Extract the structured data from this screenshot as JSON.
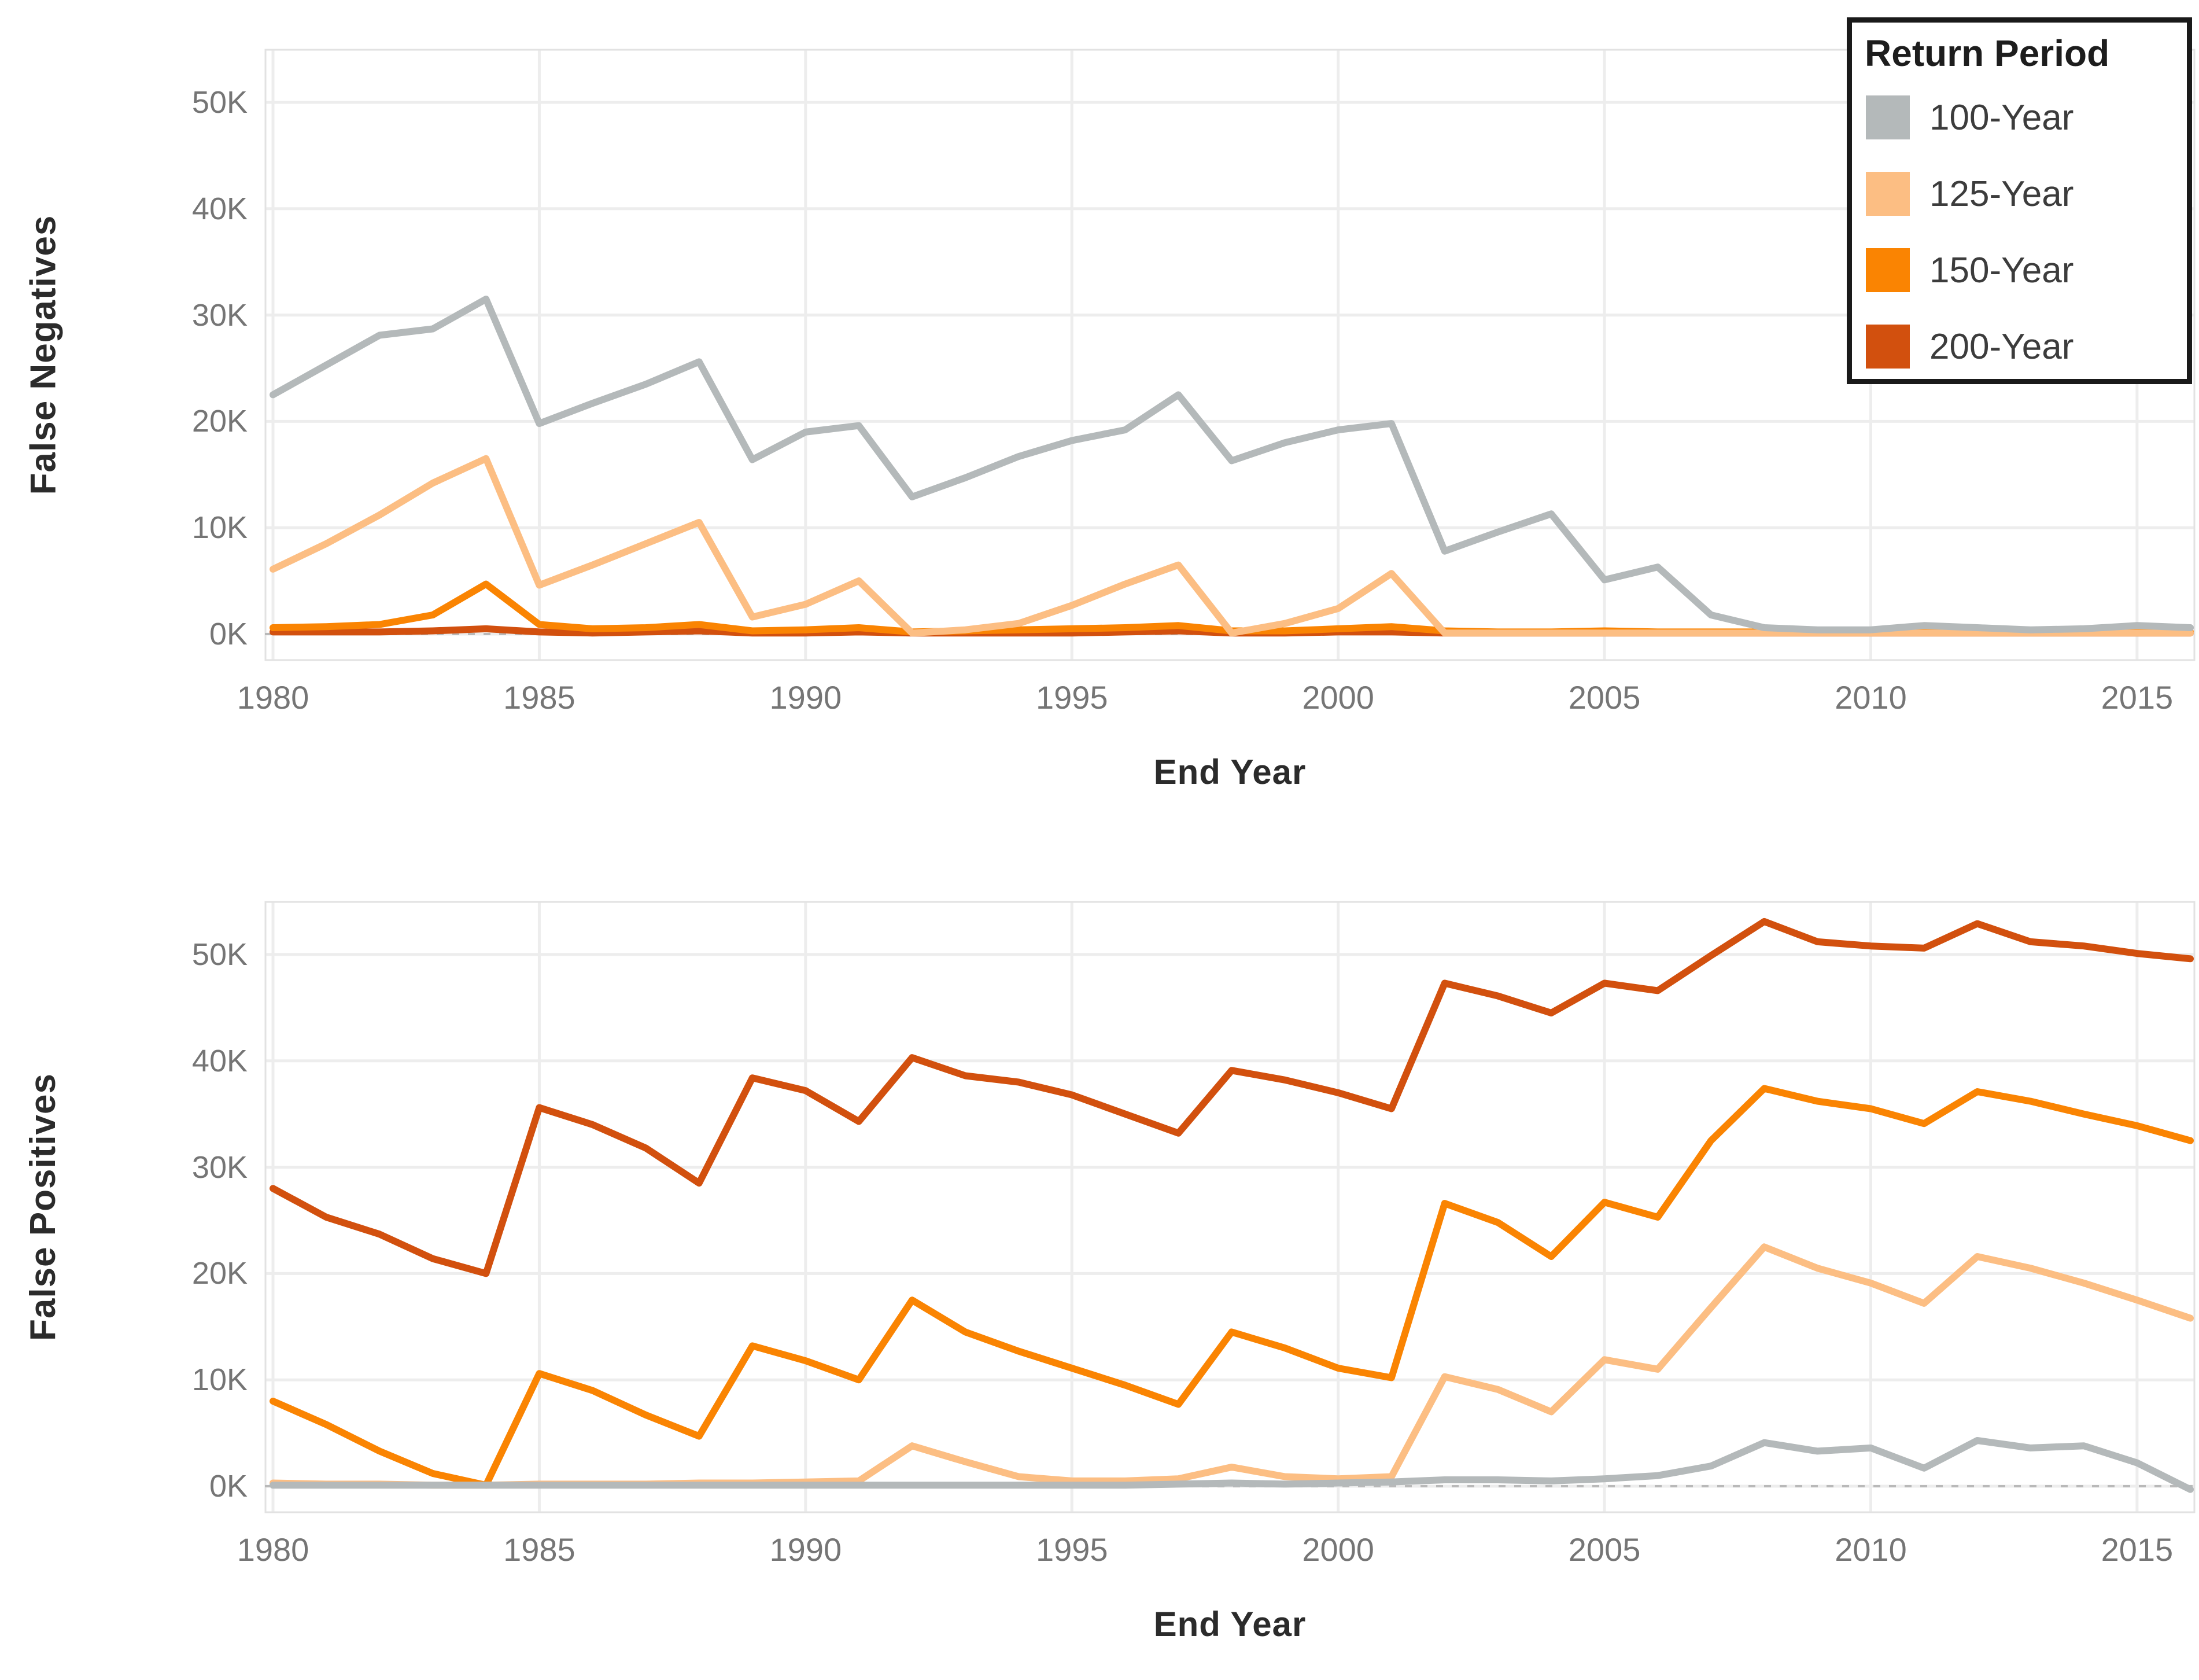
{
  "legend": {
    "title": "Return Period",
    "items": [
      {
        "label": "100-Year",
        "color": "#b4b9ba"
      },
      {
        "label": "125-Year",
        "color": "#fcbe83"
      },
      {
        "label": "150-Year",
        "color": "#fa8402"
      },
      {
        "label": "200-Year",
        "color": "#d2500e"
      }
    ]
  },
  "style": {
    "background": "#ffffff",
    "grid_color": "#ededed",
    "plot_border_color": "#e2e2e2",
    "tick_text_color": "#757575",
    "axis_title_color": "#2b2b2b",
    "zero_line_color": "#b9b9b9"
  },
  "chart_data": [
    {
      "type": "line",
      "title": "",
      "ylabel": "False Negatives",
      "xlabel": "End Year",
      "unit": "thousands",
      "grid": true,
      "legend_position": "top-right",
      "ylim": [
        -2.5,
        55
      ],
      "yticks": [
        {
          "value": 0,
          "label": "0K"
        },
        {
          "value": 10,
          "label": "10K"
        },
        {
          "value": 20,
          "label": "20K"
        },
        {
          "value": 30,
          "label": "30K"
        },
        {
          "value": 40,
          "label": "40K"
        },
        {
          "value": 50,
          "label": "50K"
        }
      ],
      "xticks": [
        {
          "value": 1980,
          "label": "1980"
        },
        {
          "value": 1985,
          "label": "1985"
        },
        {
          "value": 1990,
          "label": "1990"
        },
        {
          "value": 1995,
          "label": "1995"
        },
        {
          "value": 2000,
          "label": "2000"
        },
        {
          "value": 2005,
          "label": "2005"
        },
        {
          "value": 2010,
          "label": "2010"
        },
        {
          "value": 2015,
          "label": "2015"
        }
      ],
      "zero_reference_line": true,
      "x": [
        1980,
        1981,
        1982,
        1983,
        1984,
        1985,
        1986,
        1987,
        1988,
        1989,
        1990,
        1991,
        1992,
        1993,
        1994,
        1995,
        1996,
        1997,
        1998,
        1999,
        2000,
        2001,
        2002,
        2003,
        2004,
        2005,
        2006,
        2007,
        2008,
        2009,
        2010,
        2011,
        2012,
        2013,
        2014,
        2015,
        2016
      ],
      "series": [
        {
          "name": "100-Year",
          "color": "#b4b9ba",
          "values": [
            22.5,
            25.3,
            28.1,
            28.7,
            31.5,
            19.8,
            21.7,
            23.5,
            25.6,
            16.4,
            19.0,
            19.6,
            12.9,
            14.7,
            16.7,
            18.2,
            19.2,
            22.5,
            16.3,
            18.0,
            19.2,
            19.8,
            7.8,
            9.6,
            11.3,
            5.1,
            6.3,
            1.8,
            0.6,
            0.4,
            0.4,
            0.8,
            0.6,
            0.4,
            0.5,
            0.8,
            0.6
          ]
        },
        {
          "name": "125-Year",
          "color": "#fcbe83",
          "values": [
            6.1,
            8.5,
            11.2,
            14.2,
            16.5,
            4.6,
            6.5,
            8.5,
            10.5,
            1.6,
            2.8,
            5.0,
            0.1,
            0.4,
            1.0,
            2.7,
            4.7,
            6.5,
            0.1,
            1.0,
            2.4,
            5.7,
            0.1,
            0.1,
            0.1,
            0.1,
            0.1,
            0.1,
            0.1,
            0.1,
            0.1,
            0.1,
            0.1,
            0.1,
            0.1,
            0.1,
            0.1
          ]
        },
        {
          "name": "150-Year",
          "color": "#fa8402",
          "values": [
            0.6,
            0.7,
            0.9,
            1.8,
            4.7,
            0.9,
            0.5,
            0.6,
            0.9,
            0.3,
            0.4,
            0.6,
            0.2,
            0.3,
            0.4,
            0.5,
            0.6,
            0.8,
            0.3,
            0.3,
            0.5,
            0.7,
            0.3,
            0.2,
            0.2,
            0.3,
            0.2,
            0.2,
            0.2,
            0.2,
            0.2,
            0.2,
            0.2,
            0.2,
            0.2,
            0.2,
            0.2
          ]
        },
        {
          "name": "200-Year",
          "color": "#d2500e",
          "values": [
            0.2,
            0.2,
            0.2,
            0.3,
            0.5,
            0.2,
            0.1,
            0.2,
            0.3,
            0.1,
            0.1,
            0.2,
            0.1,
            0.1,
            0.1,
            0.1,
            0.2,
            0.3,
            0.1,
            0.1,
            0.2,
            0.2,
            0.1,
            0.1,
            0.1,
            0.1,
            0.1,
            0.1,
            0.1,
            0.1,
            0.1,
            0.1,
            0.1,
            0.1,
            0.1,
            0.1,
            0.1
          ]
        }
      ]
    },
    {
      "type": "line",
      "title": "",
      "ylabel": "False Positives",
      "xlabel": "End Year",
      "unit": "thousands",
      "grid": true,
      "ylim": [
        -2.5,
        55
      ],
      "yticks": [
        {
          "value": 0,
          "label": "0K"
        },
        {
          "value": 10,
          "label": "10K"
        },
        {
          "value": 20,
          "label": "20K"
        },
        {
          "value": 30,
          "label": "30K"
        },
        {
          "value": 40,
          "label": "40K"
        },
        {
          "value": 50,
          "label": "50K"
        }
      ],
      "xticks": [
        {
          "value": 1980,
          "label": "1980"
        },
        {
          "value": 1985,
          "label": "1985"
        },
        {
          "value": 1990,
          "label": "1990"
        },
        {
          "value": 1995,
          "label": "1995"
        },
        {
          "value": 2000,
          "label": "2000"
        },
        {
          "value": 2005,
          "label": "2005"
        },
        {
          "value": 2010,
          "label": "2010"
        },
        {
          "value": 2015,
          "label": "2015"
        }
      ],
      "zero_reference_line": true,
      "x": [
        1980,
        1981,
        1982,
        1983,
        1984,
        1985,
        1986,
        1987,
        1988,
        1989,
        1990,
        1991,
        1992,
        1993,
        1994,
        1995,
        1996,
        1997,
        1998,
        1999,
        2000,
        2001,
        2002,
        2003,
        2004,
        2005,
        2006,
        2007,
        2008,
        2009,
        2010,
        2011,
        2012,
        2013,
        2014,
        2015,
        2016
      ],
      "series": [
        {
          "name": "100-Year",
          "color": "#b4b9ba",
          "values": [
            0.1,
            0.1,
            0.1,
            0.1,
            0.1,
            0.1,
            0.1,
            0.1,
            0.1,
            0.1,
            0.1,
            0.1,
            0.1,
            0.1,
            0.1,
            0.1,
            0.1,
            0.2,
            0.3,
            0.2,
            0.3,
            0.4,
            0.6,
            0.6,
            0.5,
            0.7,
            1.0,
            1.9,
            4.1,
            3.3,
            3.6,
            1.7,
            4.3,
            3.6,
            3.8,
            2.2,
            -0.3
          ]
        },
        {
          "name": "125-Year",
          "color": "#fcbe83",
          "values": [
            0.3,
            0.2,
            0.2,
            0.1,
            0.1,
            0.2,
            0.2,
            0.2,
            0.3,
            0.3,
            0.4,
            0.5,
            3.8,
            2.3,
            0.9,
            0.5,
            0.5,
            0.7,
            1.8,
            0.9,
            0.7,
            0.9,
            10.3,
            9.1,
            7.0,
            11.9,
            11.0,
            16.8,
            22.5,
            20.5,
            19.1,
            17.2,
            21.6,
            20.5,
            19.1,
            17.5,
            15.8
          ]
        },
        {
          "name": "150-Year",
          "color": "#fa8402",
          "values": [
            8.0,
            5.8,
            3.3,
            1.2,
            0.1,
            10.6,
            9.0,
            6.7,
            4.7,
            13.2,
            11.8,
            10.0,
            17.5,
            14.5,
            12.7,
            11.1,
            9.5,
            7.7,
            14.5,
            13.0,
            11.1,
            10.2,
            26.6,
            24.8,
            21.6,
            26.7,
            25.3,
            32.5,
            37.4,
            36.2,
            35.5,
            34.1,
            37.1,
            36.2,
            35.0,
            33.9,
            32.5
          ]
        },
        {
          "name": "200-Year",
          "color": "#d2500e",
          "values": [
            28.0,
            25.3,
            23.7,
            21.4,
            20.0,
            35.6,
            34.0,
            31.8,
            28.5,
            38.4,
            37.2,
            34.3,
            40.3,
            38.6,
            38.0,
            36.8,
            35.0,
            33.2,
            39.1,
            38.2,
            37.0,
            35.5,
            47.3,
            46.1,
            44.5,
            47.3,
            46.6,
            49.9,
            53.1,
            51.2,
            50.8,
            50.6,
            52.9,
            51.2,
            50.8,
            50.1,
            49.6
          ]
        }
      ]
    }
  ]
}
